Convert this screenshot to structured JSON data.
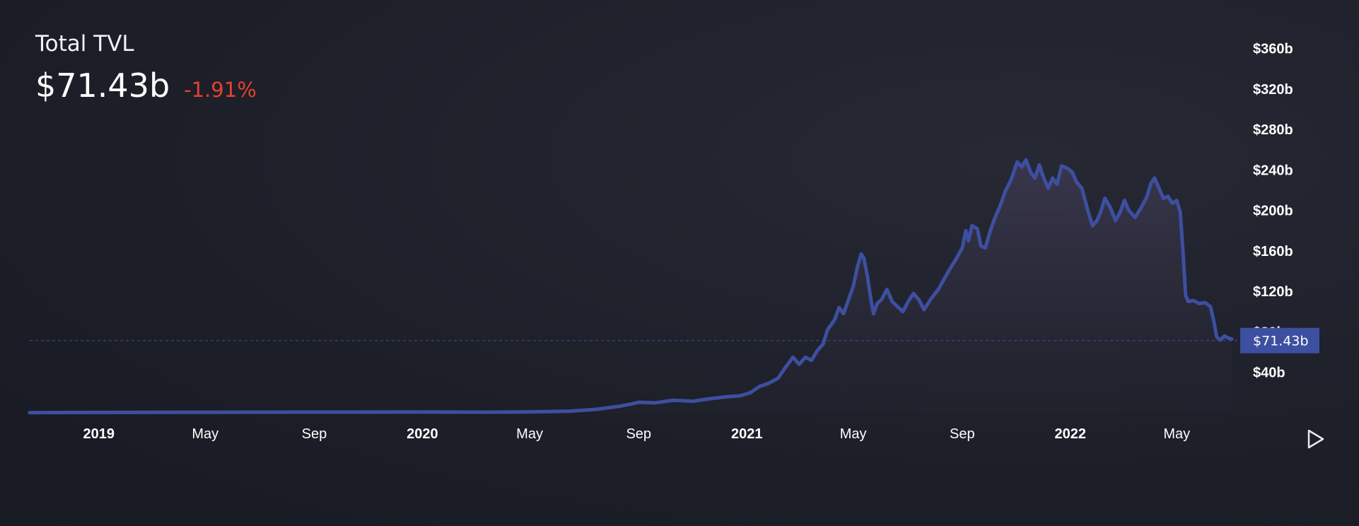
{
  "header": {
    "title": "Total TVL",
    "value": "$71.43b",
    "change": "-1.91%"
  },
  "colors": {
    "line": "#3d4fa0",
    "change_negative": "#e5412f",
    "badge": "#3d4fa0"
  },
  "controls": {
    "play_icon": "play-icon"
  },
  "chart_data": {
    "type": "area",
    "title": "",
    "xlabel": "",
    "ylabel": "",
    "y_axis_side": "right",
    "ylim": [
      0,
      380
    ],
    "y_ticks": [
      40,
      80,
      120,
      160,
      200,
      240,
      280,
      320,
      360
    ],
    "y_tick_labels": [
      "$40b",
      "$80b",
      "$120b",
      "$160b",
      "$200b",
      "$240b",
      "$280b",
      "$320b",
      "$360b"
    ],
    "xlim": [
      "2018-10-15",
      "2022-07-10"
    ],
    "x_ticks": [
      {
        "date": "2019-01-01",
        "label": "2019",
        "bold": true
      },
      {
        "date": "2019-05-01",
        "label": "May",
        "bold": false
      },
      {
        "date": "2019-09-01",
        "label": "Sep",
        "bold": false
      },
      {
        "date": "2020-01-01",
        "label": "2020",
        "bold": true
      },
      {
        "date": "2020-05-01",
        "label": "May",
        "bold": false
      },
      {
        "date": "2020-09-01",
        "label": "Sep",
        "bold": false
      },
      {
        "date": "2021-01-01",
        "label": "2021",
        "bold": true
      },
      {
        "date": "2021-05-01",
        "label": "May",
        "bold": false
      },
      {
        "date": "2021-09-01",
        "label": "Sep",
        "bold": false
      },
      {
        "date": "2022-01-01",
        "label": "2022",
        "bold": true
      },
      {
        "date": "2022-05-01",
        "label": "May",
        "bold": false
      }
    ],
    "current_value": 71.43,
    "current_label": "$71.43b",
    "series": [
      {
        "name": "",
        "points": [
          [
            "2018-10-15",
            0.3
          ],
          [
            "2019-01-01",
            0.4
          ],
          [
            "2019-05-01",
            0.6
          ],
          [
            "2019-09-01",
            0.8
          ],
          [
            "2020-01-01",
            0.9
          ],
          [
            "2020-03-15",
            0.7
          ],
          [
            "2020-05-01",
            1.0
          ],
          [
            "2020-06-15",
            1.7
          ],
          [
            "2020-07-15",
            3.5
          ],
          [
            "2020-08-10",
            6.5
          ],
          [
            "2020-08-25",
            9.0
          ],
          [
            "2020-09-01",
            10.5
          ],
          [
            "2020-09-20",
            10.0
          ],
          [
            "2020-10-10",
            12.5
          ],
          [
            "2020-11-01",
            11.5
          ],
          [
            "2020-11-20",
            14.0
          ],
          [
            "2020-12-10",
            16.0
          ],
          [
            "2020-12-25",
            17.0
          ],
          [
            "2021-01-05",
            20.0
          ],
          [
            "2021-01-15",
            26.0
          ],
          [
            "2021-01-25",
            29.0
          ],
          [
            "2021-02-05",
            34.0
          ],
          [
            "2021-02-12",
            43.0
          ],
          [
            "2021-02-18",
            50.0
          ],
          [
            "2021-02-22",
            55.0
          ],
          [
            "2021-03-01",
            48.0
          ],
          [
            "2021-03-08",
            55.0
          ],
          [
            "2021-03-15",
            52.0
          ],
          [
            "2021-03-22",
            62.0
          ],
          [
            "2021-03-28",
            68.0
          ],
          [
            "2021-04-02",
            82.0
          ],
          [
            "2021-04-10",
            92.0
          ],
          [
            "2021-04-15",
            104.0
          ],
          [
            "2021-04-20",
            98.0
          ],
          [
            "2021-04-25",
            110.0
          ],
          [
            "2021-05-01",
            125.0
          ],
          [
            "2021-05-06",
            145.0
          ],
          [
            "2021-05-10",
            157.0
          ],
          [
            "2021-05-13",
            153.0
          ],
          [
            "2021-05-17",
            135.0
          ],
          [
            "2021-05-21",
            112.0
          ],
          [
            "2021-05-24",
            98.0
          ],
          [
            "2021-05-28",
            108.0
          ],
          [
            "2021-06-02",
            112.0
          ],
          [
            "2021-06-08",
            122.0
          ],
          [
            "2021-06-14",
            110.0
          ],
          [
            "2021-06-20",
            105.0
          ],
          [
            "2021-06-26",
            100.0
          ],
          [
            "2021-07-02",
            110.0
          ],
          [
            "2021-07-08",
            118.0
          ],
          [
            "2021-07-14",
            112.0
          ],
          [
            "2021-07-20",
            102.0
          ],
          [
            "2021-07-28",
            113.0
          ],
          [
            "2021-08-05",
            122.0
          ],
          [
            "2021-08-12",
            133.0
          ],
          [
            "2021-08-18",
            142.0
          ],
          [
            "2021-08-25",
            152.0
          ],
          [
            "2021-09-01",
            163.0
          ],
          [
            "2021-09-05",
            180.0
          ],
          [
            "2021-09-08",
            170.0
          ],
          [
            "2021-09-12",
            185.0
          ],
          [
            "2021-09-18",
            182.0
          ],
          [
            "2021-09-22",
            165.0
          ],
          [
            "2021-09-27",
            163.0
          ],
          [
            "2021-10-02",
            178.0
          ],
          [
            "2021-10-08",
            193.0
          ],
          [
            "2021-10-14",
            205.0
          ],
          [
            "2021-10-20",
            220.0
          ],
          [
            "2021-10-26",
            230.0
          ],
          [
            "2021-11-02",
            248.0
          ],
          [
            "2021-11-07",
            243.0
          ],
          [
            "2021-11-12",
            250.0
          ],
          [
            "2021-11-17",
            238.0
          ],
          [
            "2021-11-22",
            232.0
          ],
          [
            "2021-11-27",
            245.0
          ],
          [
            "2021-12-02",
            232.0
          ],
          [
            "2021-12-07",
            222.0
          ],
          [
            "2021-12-12",
            232.0
          ],
          [
            "2021-12-17",
            226.0
          ],
          [
            "2021-12-22",
            244.0
          ],
          [
            "2021-12-28",
            242.0
          ],
          [
            "2022-01-03",
            238.0
          ],
          [
            "2022-01-08",
            228.0
          ],
          [
            "2022-01-14",
            222.0
          ],
          [
            "2022-01-20",
            202.0
          ],
          [
            "2022-01-26",
            185.0
          ],
          [
            "2022-01-31",
            190.0
          ],
          [
            "2022-02-04",
            198.0
          ],
          [
            "2022-02-09",
            212.0
          ],
          [
            "2022-02-15",
            203.0
          ],
          [
            "2022-02-21",
            190.0
          ],
          [
            "2022-02-26",
            198.0
          ],
          [
            "2022-03-03",
            210.0
          ],
          [
            "2022-03-08",
            200.0
          ],
          [
            "2022-03-15",
            193.0
          ],
          [
            "2022-03-22",
            203.0
          ],
          [
            "2022-03-28",
            213.0
          ],
          [
            "2022-04-02",
            227.0
          ],
          [
            "2022-04-06",
            232.0
          ],
          [
            "2022-04-11",
            222.0
          ],
          [
            "2022-04-16",
            212.0
          ],
          [
            "2022-04-21",
            214.0
          ],
          [
            "2022-04-26",
            207.0
          ],
          [
            "2022-05-01",
            210.0
          ],
          [
            "2022-05-05",
            198.0
          ],
          [
            "2022-05-08",
            160.0
          ],
          [
            "2022-05-11",
            116.0
          ],
          [
            "2022-05-14",
            110.0
          ],
          [
            "2022-05-20",
            111.0
          ],
          [
            "2022-05-26",
            108.0
          ],
          [
            "2022-06-02",
            109.0
          ],
          [
            "2022-06-08",
            105.0
          ],
          [
            "2022-06-12",
            90.0
          ],
          [
            "2022-06-15",
            75.0
          ],
          [
            "2022-06-19",
            72.0
          ],
          [
            "2022-06-24",
            76.0
          ],
          [
            "2022-06-28",
            74.0
          ],
          [
            "2022-07-02",
            73.0
          ]
        ]
      }
    ]
  }
}
